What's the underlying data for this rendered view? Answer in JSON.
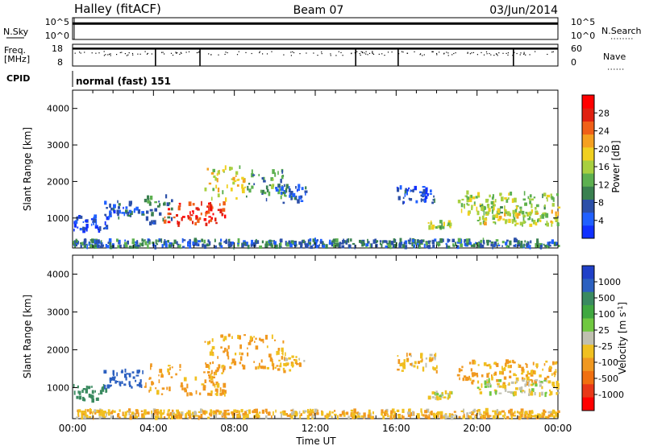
{
  "header": {
    "radar": "Halley (fitACF)",
    "beam": "Beam 07",
    "date": "03/Jun/2014"
  },
  "noise_panel": {
    "left_label": "N.Sky",
    "left_ticks": [
      "10^5",
      "10^0"
    ],
    "right_label": "N.Search",
    "right_ticks": [
      "10^5",
      "10^0"
    ],
    "level_fraction": 0.73
  },
  "freq_panel": {
    "left_label": "Freq.",
    "left_unit": "[MHz]",
    "left_ticks": [
      "18",
      "8"
    ],
    "right_label": "Nave",
    "right_ticks": [
      "60",
      "0"
    ],
    "level_fraction": 0.2,
    "spike_hours": [
      4.1,
      6.3,
      14.0,
      16.1,
      21.8
    ]
  },
  "cpid": {
    "label": "CPID",
    "mode": "normal (fast) 151"
  },
  "colors": {
    "power": [
      "#1030ff",
      "#2060ff",
      "#2c50a8",
      "#3a8050",
      "#5db050",
      "#a8d040",
      "#f0d020",
      "#f5a020",
      "#f06018",
      "#e02010",
      "#ff0000"
    ],
    "velocity": [
      "#2040c8",
      "#2c60c0",
      "#3a8a60",
      "#40a840",
      "#70c840",
      "#c0c0b0",
      "#f0c020",
      "#f09820",
      "#f07010",
      "#e83818",
      "#ff0000"
    ]
  },
  "chart_data": [
    {
      "type": "heatmap",
      "title": "",
      "xlabel": "Time UT",
      "ylabel": "Slant Range [km]",
      "x_ticks": [
        "00:00",
        "04:00",
        "08:00",
        "12:00",
        "16:00",
        "20:00",
        "00:00"
      ],
      "xlim_hours": [
        0,
        24
      ],
      "ylim": [
        180,
        4500
      ],
      "y_ticks": [
        1000,
        2000,
        3000,
        4000
      ],
      "colorbar": {
        "label": "Power [dB]",
        "range": [
          0,
          30
        ],
        "ticks": [
          "4",
          "8",
          "12",
          "16",
          "20",
          "24",
          "28"
        ]
      },
      "features": [
        {
          "start_utc": "00:00",
          "end_utc": "01:40",
          "range_km": [
            650,
            1050
          ],
          "level": 4
        },
        {
          "start_utc": "01:30",
          "end_utc": "03:30",
          "range_km": [
            1000,
            1450
          ],
          "level": 6
        },
        {
          "start_utc": "03:30",
          "end_utc": "05:00",
          "range_km": [
            850,
            1600
          ],
          "level": 9
        },
        {
          "start_utc": "04:30",
          "end_utc": "07:30",
          "range_km": [
            800,
            1400
          ],
          "level": 26
        },
        {
          "start_utc": "06:30",
          "end_utc": "08:30",
          "range_km": [
            1500,
            2400
          ],
          "level": 17
        },
        {
          "start_utc": "08:30",
          "end_utc": "10:30",
          "range_km": [
            1500,
            2300
          ],
          "level": 11
        },
        {
          "start_utc": "10:00",
          "end_utc": "11:30",
          "range_km": [
            1400,
            1900
          ],
          "level": 6
        },
        {
          "start_utc": "16:00",
          "end_utc": "18:00",
          "range_km": [
            1400,
            1900
          ],
          "level": 5
        },
        {
          "start_utc": "17:30",
          "end_utc": "18:40",
          "range_km": [
            700,
            900
          ],
          "level": 14
        },
        {
          "start_utc": "19:00",
          "end_utc": "23:59",
          "range_km": [
            1100,
            1700
          ],
          "level": 14
        },
        {
          "start_utc": "20:00",
          "end_utc": "23:59",
          "range_km": [
            800,
            1200
          ],
          "level": 16
        },
        {
          "start_utc": "00:00",
          "end_utc": "23:59",
          "range_km": [
            200,
            400
          ],
          "level": 8
        }
      ]
    },
    {
      "type": "heatmap",
      "title": "",
      "xlabel": "Time UT",
      "ylabel": "Slant Range [km]",
      "x_ticks": [
        "00:00",
        "04:00",
        "08:00",
        "12:00",
        "16:00",
        "20:00",
        "00:00"
      ],
      "xlim_hours": [
        0,
        24
      ],
      "ylim": [
        180,
        4500
      ],
      "y_ticks": [
        1000,
        2000,
        3000,
        4000
      ],
      "colorbar": {
        "label": "Velocity [m s^-1]",
        "ticks": [
          "1000",
          "500",
          "100",
          "25",
          "-25",
          "-100",
          "-500",
          "-1000"
        ]
      },
      "features": [
        {
          "start_utc": "00:00",
          "end_utc": "01:40",
          "range_km": [
            650,
            1050
          ],
          "velocity_ms": 300
        },
        {
          "start_utc": "01:30",
          "end_utc": "03:30",
          "range_km": [
            1000,
            1450
          ],
          "velocity_ms": 800
        },
        {
          "start_utc": "03:30",
          "end_utc": "07:30",
          "range_km": [
            800,
            1600
          ],
          "velocity_ms": -150
        },
        {
          "start_utc": "06:30",
          "end_utc": "10:30",
          "range_km": [
            1500,
            2400
          ],
          "velocity_ms": -120
        },
        {
          "start_utc": "10:00",
          "end_utc": "11:30",
          "range_km": [
            1400,
            1900
          ],
          "velocity_ms": -80
        },
        {
          "start_utc": "16:00",
          "end_utc": "18:00",
          "range_km": [
            1400,
            1900
          ],
          "velocity_ms": -60
        },
        {
          "start_utc": "17:30",
          "end_utc": "18:40",
          "range_km": [
            700,
            900
          ],
          "velocity_ms": 0
        },
        {
          "start_utc": "19:00",
          "end_utc": "23:59",
          "range_km": [
            1100,
            1700
          ],
          "velocity_ms": -120
        },
        {
          "start_utc": "20:00",
          "end_utc": "23:59",
          "range_km": [
            800,
            1200
          ],
          "velocity_ms": 0
        },
        {
          "start_utc": "00:00",
          "end_utc": "23:59",
          "range_km": [
            200,
            400
          ],
          "velocity_ms": -80
        }
      ]
    }
  ]
}
